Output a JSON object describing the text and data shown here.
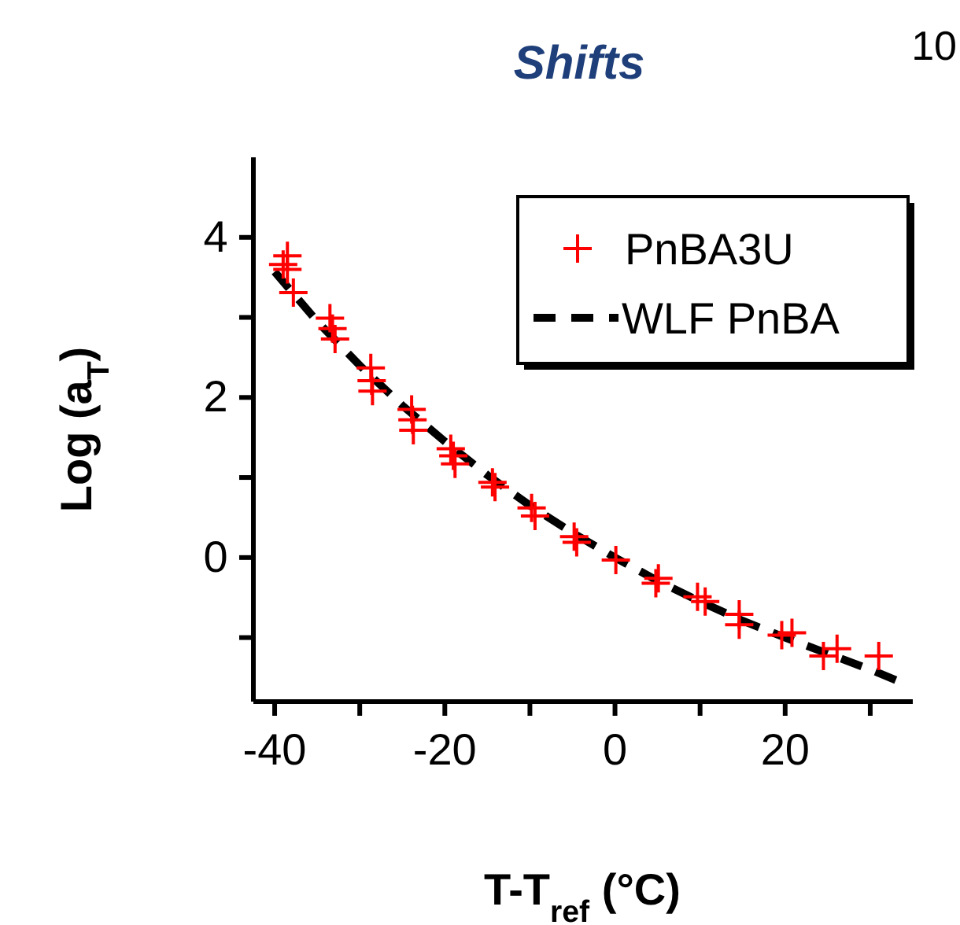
{
  "chart_data": {
    "type": "scatter",
    "title": "Shifts",
    "xlabel": "T-T$_{ref}$ (°C)",
    "ylabel": "Log (a$_{T}$)",
    "annotations": [
      "10"
    ],
    "xlim": [
      -42.5,
      35
    ],
    "xticks": [
      -40,
      {
        "value": -30,
        "label": null
      },
      -20,
      {
        "value": -10,
        "label": null
      },
      0,
      {
        "value": 10,
        "label": null
      },
      20,
      {
        "value": 30,
        "label": null
      }
    ],
    "ylim": [
      -1.8,
      5
    ],
    "yticks": [
      {
        "value": -1,
        "label": null
      },
      0,
      {
        "value": 1,
        "label": null
      },
      2,
      {
        "value": 3,
        "label": null
      },
      4
    ],
    "grid": false,
    "legend": "top right",
    "series": [
      {
        "name": "PnBA3U",
        "marker": "cross",
        "color": "#ff0000",
        "x": [
          -38.5,
          -38.5,
          -37.8,
          -39,
          -33.5,
          -33.2,
          -32.9,
          -28.7,
          -28.6,
          -28.5,
          -23.9,
          -23.8,
          -23.7,
          -19.3,
          -19.0,
          -18.8,
          -14.4,
          -14.1,
          -9.8,
          -9.4,
          -4.8,
          -4.5,
          0.1,
          5.1,
          4.8,
          9.7,
          10.6,
          14.6,
          14.6,
          19.6,
          20.8,
          24.5,
          26.1,
          31
        ],
        "values": [
          3.77,
          3.6,
          3.31,
          3.66,
          2.99,
          2.86,
          2.73,
          2.37,
          2.21,
          2.08,
          1.85,
          1.72,
          1.59,
          1.36,
          1.27,
          1.17,
          0.94,
          0.88,
          0.62,
          0.52,
          0.26,
          0.19,
          -0.03,
          -0.26,
          -0.32,
          -0.49,
          -0.55,
          -0.71,
          -0.84,
          -0.97,
          -0.94,
          -1.23,
          -1.14,
          -1.23
        ]
      },
      {
        "name": "WLF PnBA",
        "type": "line",
        "line_style": "dashed",
        "color": "#000000",
        "x": [
          -40,
          -35,
          -30,
          -25,
          -20,
          -15,
          -10,
          -5,
          0,
          5,
          10,
          15,
          20,
          25,
          30,
          33
        ],
        "values": [
          3.57,
          2.95,
          2.4,
          1.9,
          1.45,
          1.03,
          0.65,
          0.31,
          0,
          -0.29,
          -0.55,
          -0.79,
          -1.0,
          -1.2,
          -1.4,
          -1.53
        ]
      }
    ]
  }
}
